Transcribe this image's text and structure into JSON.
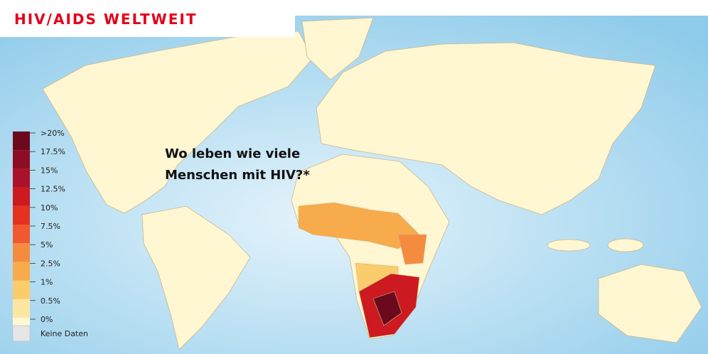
{
  "header": {
    "title": "HIV/AIDS WELTWEIT"
  },
  "subtitle": {
    "lines": [
      "Wo leben wie viele",
      "Menschen mit HIV?*"
    ]
  },
  "legend": {
    "items": [
      {
        "label": ">20%",
        "color": "#6b0a1c"
      },
      {
        "label": "17.5%",
        "color": "#8d0d24"
      },
      {
        "label": "15%",
        "color": "#ab1129"
      },
      {
        "label": "12.5%",
        "color": "#cc1a20"
      },
      {
        "label": "10%",
        "color": "#e5311f"
      },
      {
        "label": "7.5%",
        "color": "#f0592f"
      },
      {
        "label": "5%",
        "color": "#f58b3f"
      },
      {
        "label": "2.5%",
        "color": "#f8ab4b"
      },
      {
        "label": "1%",
        "color": "#fbcc6c"
      },
      {
        "label": "0.5%",
        "color": "#fde6a2"
      },
      {
        "label": "0%",
        "color": "#fff8d6"
      }
    ],
    "no_data": {
      "label": "Keine Daten",
      "color": "#e6e6e6"
    }
  }
}
